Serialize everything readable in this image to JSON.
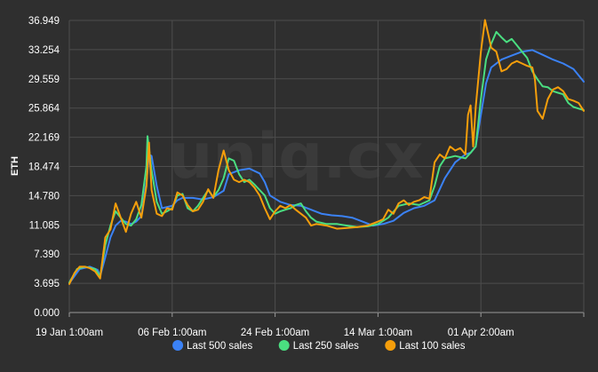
{
  "watermark": "uniq.cx",
  "chart_data": {
    "type": "line",
    "ylabel": "ETH",
    "ylim": [
      0.0,
      36.949
    ],
    "yticks": [
      "0.000",
      "3.695",
      "7.390",
      "11.085",
      "14.780",
      "18.474",
      "22.169",
      "25.864",
      "29.559",
      "33.254",
      "36.949"
    ],
    "xlim": [
      0,
      100
    ],
    "xticks": [
      {
        "x": 0,
        "label": "19 Jan 1:00am"
      },
      {
        "x": 20,
        "label": "06 Feb 1:00am"
      },
      {
        "x": 40,
        "label": "24 Feb 1:00am"
      },
      {
        "x": 60,
        "label": "14 Mar 1:00am"
      },
      {
        "x": 80,
        "label": "01 Apr 2:00am"
      },
      {
        "x": 100,
        "label": ""
      }
    ],
    "grid": true,
    "legend_position": "bottom",
    "series": [
      {
        "name": "Last 500 sales",
        "color": "#3b82f6",
        "points": [
          [
            0,
            3.7
          ],
          [
            2,
            5.5
          ],
          [
            4,
            5.8
          ],
          [
            5.5,
            5.4
          ],
          [
            6,
            4.6
          ],
          [
            7,
            7.0
          ],
          [
            8,
            9.5
          ],
          [
            9,
            11.0
          ],
          [
            10,
            11.6
          ],
          [
            11,
            11.5
          ],
          [
            12,
            11.2
          ],
          [
            13,
            11.5
          ],
          [
            14,
            12.2
          ],
          [
            15,
            16.5
          ],
          [
            15.5,
            20.0
          ],
          [
            16,
            19.8
          ],
          [
            17,
            16.0
          ],
          [
            18,
            13.2
          ],
          [
            20,
            13.5
          ],
          [
            21,
            14.2
          ],
          [
            22,
            14.5
          ],
          [
            24,
            14.5
          ],
          [
            26,
            14.3
          ],
          [
            28,
            14.6
          ],
          [
            30,
            15.4
          ],
          [
            31,
            17.5
          ],
          [
            33,
            18.0
          ],
          [
            35,
            18.2
          ],
          [
            37,
            17.6
          ],
          [
            38,
            16.5
          ],
          [
            39,
            14.8
          ],
          [
            41,
            14.0
          ],
          [
            43,
            13.6
          ],
          [
            45,
            13.5
          ],
          [
            47,
            13.0
          ],
          [
            49,
            12.5
          ],
          [
            51,
            12.3
          ],
          [
            53,
            12.2
          ],
          [
            55,
            12.0
          ],
          [
            57,
            11.5
          ],
          [
            59,
            11.0
          ],
          [
            61,
            11.2
          ],
          [
            63,
            11.6
          ],
          [
            65,
            12.6
          ],
          [
            67,
            13.2
          ],
          [
            69,
            13.5
          ],
          [
            71,
            14.2
          ],
          [
            73,
            17.0
          ],
          [
            75,
            19.0
          ],
          [
            77,
            20.0
          ],
          [
            78,
            20.2
          ],
          [
            79,
            21.0
          ],
          [
            80,
            25.0
          ],
          [
            81,
            29.0
          ],
          [
            82,
            31.0
          ],
          [
            84,
            32.0
          ],
          [
            86,
            32.5
          ],
          [
            88,
            33.0
          ],
          [
            90,
            33.2
          ],
          [
            92,
            32.6
          ],
          [
            94,
            32.0
          ],
          [
            96,
            31.5
          ],
          [
            98,
            30.8
          ],
          [
            100,
            29.2
          ]
        ]
      },
      {
        "name": "Last 250 sales",
        "color": "#4ade80",
        "points": [
          [
            0,
            3.8
          ],
          [
            1.5,
            5.5
          ],
          [
            3,
            5.8
          ],
          [
            5,
            5.5
          ],
          [
            6,
            4.6
          ],
          [
            7,
            8.5
          ],
          [
            8,
            11.0
          ],
          [
            9,
            12.8
          ],
          [
            10,
            12.0
          ],
          [
            11,
            11.2
          ],
          [
            12,
            11.0
          ],
          [
            13,
            11.8
          ],
          [
            14,
            13.6
          ],
          [
            15,
            18.5
          ],
          [
            15.2,
            22.3
          ],
          [
            16,
            18.0
          ],
          [
            17,
            14.0
          ],
          [
            18,
            12.5
          ],
          [
            19,
            12.8
          ],
          [
            20,
            13.2
          ],
          [
            21,
            14.8
          ],
          [
            22,
            15.0
          ],
          [
            23,
            13.2
          ],
          [
            24,
            12.8
          ],
          [
            25,
            13.5
          ],
          [
            26,
            14.5
          ],
          [
            27,
            15.5
          ],
          [
            28,
            14.6
          ],
          [
            29,
            15.5
          ],
          [
            30,
            17.0
          ],
          [
            31,
            19.5
          ],
          [
            32,
            19.2
          ],
          [
            33,
            17.5
          ],
          [
            34,
            16.5
          ],
          [
            35,
            16.8
          ],
          [
            36,
            16.2
          ],
          [
            37,
            15.5
          ],
          [
            38,
            14.8
          ],
          [
            39,
            13.2
          ],
          [
            40,
            12.5
          ],
          [
            41,
            12.8
          ],
          [
            42,
            13.0
          ],
          [
            43,
            13.2
          ],
          [
            44,
            13.6
          ],
          [
            45,
            13.8
          ],
          [
            46,
            12.8
          ],
          [
            47,
            12.0
          ],
          [
            48,
            11.5
          ],
          [
            50,
            11.2
          ],
          [
            52,
            11.2
          ],
          [
            54,
            11.0
          ],
          [
            56,
            10.8
          ],
          [
            58,
            10.9
          ],
          [
            60,
            11.2
          ],
          [
            62,
            12.0
          ],
          [
            64,
            13.5
          ],
          [
            66,
            13.8
          ],
          [
            68,
            13.6
          ],
          [
            70,
            14.2
          ],
          [
            71,
            16.0
          ],
          [
            72,
            18.5
          ],
          [
            73,
            19.5
          ],
          [
            75,
            19.8
          ],
          [
            77,
            19.5
          ],
          [
            78,
            20.2
          ],
          [
            79,
            21.0
          ],
          [
            80,
            27.0
          ],
          [
            81,
            32.0
          ],
          [
            82,
            34.0
          ],
          [
            83,
            35.5
          ],
          [
            84,
            34.8
          ],
          [
            85,
            34.2
          ],
          [
            86,
            34.6
          ],
          [
            87,
            33.8
          ],
          [
            88,
            33.0
          ],
          [
            89,
            32.2
          ],
          [
            90,
            30.5
          ],
          [
            91,
            29.5
          ],
          [
            92,
            28.6
          ],
          [
            93,
            28.5
          ],
          [
            94,
            28.0
          ],
          [
            95,
            27.8
          ],
          [
            96,
            27.6
          ],
          [
            97,
            26.5
          ],
          [
            98,
            26.0
          ],
          [
            99,
            25.8
          ],
          [
            100,
            25.6
          ]
        ]
      },
      {
        "name": "Last 100 sales",
        "color": "#f59e0b",
        "points": [
          [
            0,
            3.6
          ],
          [
            1,
            5.0
          ],
          [
            2,
            5.8
          ],
          [
            3,
            5.8
          ],
          [
            4,
            5.6
          ],
          [
            5,
            5.2
          ],
          [
            6,
            4.3
          ],
          [
            7,
            9.5
          ],
          [
            8,
            10.5
          ],
          [
            9,
            13.8
          ],
          [
            10,
            12.0
          ],
          [
            11,
            10.2
          ],
          [
            12,
            12.5
          ],
          [
            13,
            14.0
          ],
          [
            14,
            12.0
          ],
          [
            15,
            16.0
          ],
          [
            15.5,
            21.5
          ],
          [
            16,
            15.5
          ],
          [
            17,
            12.5
          ],
          [
            18,
            12.2
          ],
          [
            19,
            13.2
          ],
          [
            20,
            13.0
          ],
          [
            21,
            15.2
          ],
          [
            22,
            14.8
          ],
          [
            23,
            13.6
          ],
          [
            24,
            12.8
          ],
          [
            25,
            13.0
          ],
          [
            26,
            14.0
          ],
          [
            27,
            15.6
          ],
          [
            28,
            14.5
          ],
          [
            29,
            18.0
          ],
          [
            30,
            20.5
          ],
          [
            31,
            18.0
          ],
          [
            32,
            16.8
          ],
          [
            33,
            16.5
          ],
          [
            34,
            16.8
          ],
          [
            35,
            16.5
          ],
          [
            36,
            15.8
          ],
          [
            37,
            14.8
          ],
          [
            38,
            13.2
          ],
          [
            39,
            11.8
          ],
          [
            40,
            12.8
          ],
          [
            41,
            13.5
          ],
          [
            42,
            13.2
          ],
          [
            43,
            13.6
          ],
          [
            44,
            13.0
          ],
          [
            45,
            12.5
          ],
          [
            46,
            12.0
          ],
          [
            47,
            11.0
          ],
          [
            48,
            11.2
          ],
          [
            50,
            11.0
          ],
          [
            52,
            10.6
          ],
          [
            54,
            10.7
          ],
          [
            56,
            10.8
          ],
          [
            58,
            11.0
          ],
          [
            60,
            11.5
          ],
          [
            61,
            11.8
          ],
          [
            62,
            13.0
          ],
          [
            63,
            12.5
          ],
          [
            64,
            13.8
          ],
          [
            65,
            14.2
          ],
          [
            66,
            13.6
          ],
          [
            67,
            14.0
          ],
          [
            68,
            14.2
          ],
          [
            69,
            14.6
          ],
          [
            70,
            14.4
          ],
          [
            71,
            19.0
          ],
          [
            72,
            20.0
          ],
          [
            73,
            19.5
          ],
          [
            74,
            21.0
          ],
          [
            75,
            20.5
          ],
          [
            76,
            20.8
          ],
          [
            77,
            20.0
          ],
          [
            77.5,
            25.0
          ],
          [
            78,
            26.2
          ],
          [
            78.5,
            21.0
          ],
          [
            79,
            26.0
          ],
          [
            80,
            33.0
          ],
          [
            80.8,
            37.0
          ],
          [
            81.5,
            35.0
          ],
          [
            82,
            33.5
          ],
          [
            83,
            33.0
          ],
          [
            84,
            30.5
          ],
          [
            85,
            30.8
          ],
          [
            86,
            31.5
          ],
          [
            87,
            31.8
          ],
          [
            88,
            31.5
          ],
          [
            89,
            31.2
          ],
          [
            90,
            31.0
          ],
          [
            90.5,
            29.5
          ],
          [
            91,
            25.5
          ],
          [
            92,
            24.5
          ],
          [
            93,
            27.0
          ],
          [
            94,
            28.2
          ],
          [
            95,
            28.5
          ],
          [
            96,
            28.0
          ],
          [
            97,
            27.0
          ],
          [
            98,
            26.8
          ],
          [
            99,
            26.5
          ],
          [
            100,
            25.5
          ]
        ]
      }
    ]
  }
}
